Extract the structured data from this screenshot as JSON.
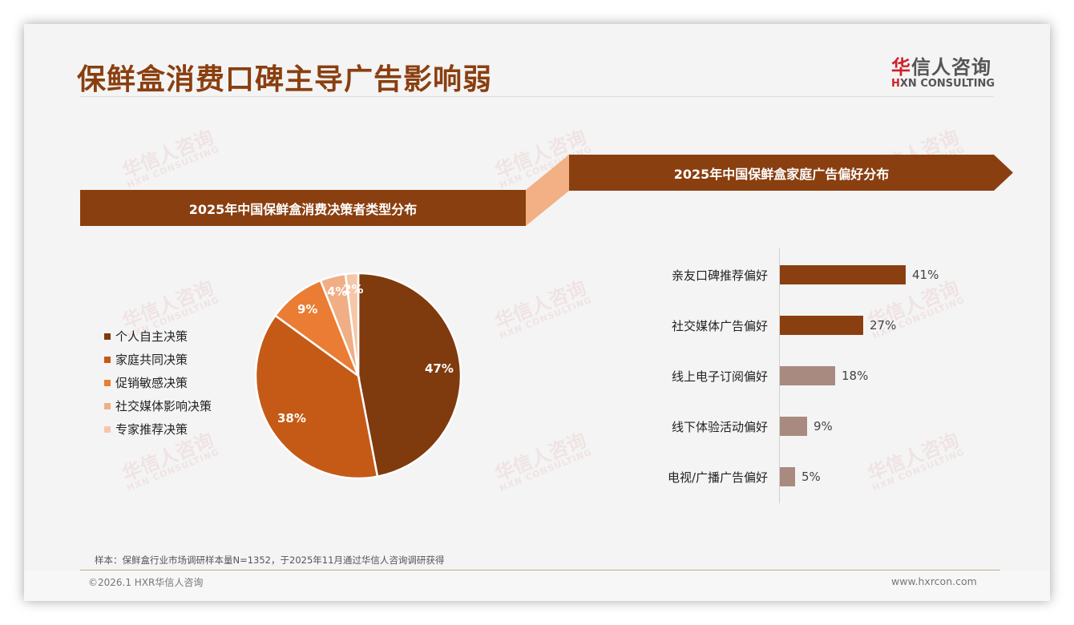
{
  "header": {
    "title": "保鲜盒消费口碑主导广告影响弱",
    "logo_cn_accent": "华",
    "logo_cn_rest": "信人咨询",
    "logo_en_accent": "H",
    "logo_en_rest": "XN CONSULTING"
  },
  "watermark": {
    "cn": "华信人咨询",
    "en": "HXN CONSULTING"
  },
  "left_panel": {
    "banner": "2025年中国保鲜盒消费决策者类型分布"
  },
  "right_panel": {
    "banner": "2025年中国保鲜盒家庭广告偏好分布"
  },
  "colors": {
    "brand_brown": "#8a3f10",
    "connector": "#f2b084",
    "pie": [
      "#7f3a0e",
      "#c55a17",
      "#ea7c33",
      "#f0ae85",
      "#f5c7a8"
    ],
    "bar_dark": "#8a3f10",
    "bar_light": "#a98a80"
  },
  "chart_data": [
    {
      "type": "pie",
      "title": "2025年中国保鲜盒消费决策者类型分布",
      "categories": [
        "个人自主决策",
        "家庭共同决策",
        "促销敏感决策",
        "社交媒体影响决策",
        "专家推荐决策"
      ],
      "values": [
        47,
        38,
        9,
        4,
        2
      ],
      "labels": [
        "47%",
        "38%",
        "9%",
        "4%",
        "2%"
      ],
      "legend_position": "left",
      "start_angle": "12 o'clock, clockwise"
    },
    {
      "type": "bar",
      "orientation": "horizontal",
      "title": "2025年中国保鲜盒家庭广告偏好分布",
      "categories": [
        "亲友口碑推荐偏好",
        "社交媒体广告偏好",
        "线上电子订阅偏好",
        "线下体验活动偏好",
        "电视/广播广告偏好"
      ],
      "values": [
        41,
        27,
        18,
        9,
        5
      ],
      "labels": [
        "41%",
        "27%",
        "18%",
        "9%",
        "5%"
      ],
      "xlabel": "",
      "ylabel": "",
      "grid": false
    }
  ],
  "legend": [
    {
      "label": "个人自主决策"
    },
    {
      "label": "家庭共同决策"
    },
    {
      "label": "促销敏感决策"
    },
    {
      "label": "社交媒体影响决策"
    },
    {
      "label": "专家推荐决策"
    }
  ],
  "pie_labels": [
    "47%",
    "38%",
    "9%",
    "4%",
    "2%"
  ],
  "bars": [
    {
      "label": "亲友口碑推荐偏好",
      "value": "41%"
    },
    {
      "label": "社交媒体广告偏好",
      "value": "27%"
    },
    {
      "label": "线上电子订阅偏好",
      "value": "18%"
    },
    {
      "label": "线下体验活动偏好",
      "value": "9%"
    },
    {
      "label": "电视/广播广告偏好",
      "value": "5%"
    }
  ],
  "footer": {
    "note": "样本：保鲜盒行业市场调研样本量N=1352，于2025年11月通过华信人咨询调研获得",
    "copyright": "©2026.1 HXR华信人咨询",
    "website": "www.hxrcon.com"
  }
}
